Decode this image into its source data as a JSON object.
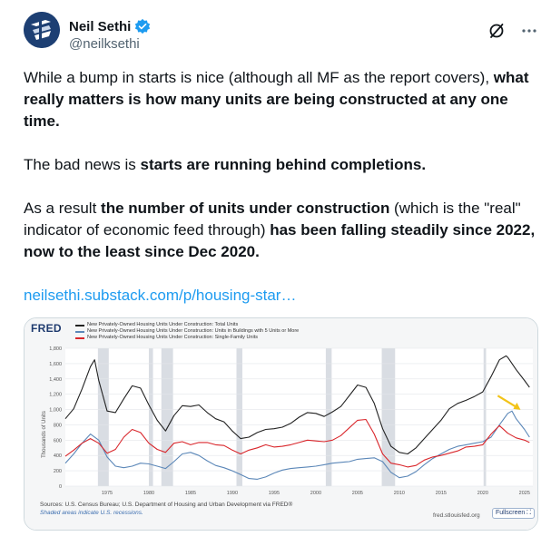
{
  "author": {
    "name": "Neil Sethi",
    "handle": "@neilksethi"
  },
  "tweet": {
    "p1_a": "While a bump in starts is nice (although all MF as the report covers), ",
    "p1_b": "what really matters is how many units are being constructed at any one time.",
    "p2_a": "The bad news is ",
    "p2_b": "starts are running behind completions.",
    "p3_a": "As a result ",
    "p3_b": "the number of units under construction",
    "p3_c": " (which is the \"real\" indicator of economic feed through) ",
    "p3_d": "has been falling steadily since 2022, now to the least since Dec 2020.",
    "link": "neilsethi.substack.com/p/housing-star…"
  },
  "icons": {
    "grok": "grok-icon",
    "more": "more-icon",
    "verified": "verified-badge-icon",
    "arrow": "arrow-icon"
  },
  "colors": {
    "accent": "#1d9bf0",
    "total": "#222222",
    "five_plus": "#5b87b8",
    "single_family": "#d9262b",
    "recession": "#d9dde3"
  },
  "chart_data": {
    "type": "line",
    "brand": "FRED",
    "ylabel": "Thousands of Units",
    "ylim": [
      0,
      1800
    ],
    "yticks": [
      "0",
      "200",
      "400",
      "600",
      "800",
      "1,000",
      "1,200",
      "1,400",
      "1,600",
      "1,800"
    ],
    "xlim": [
      1970,
      2026
    ],
    "xticks": [
      "1975",
      "1980",
      "1985",
      "1990",
      "1995",
      "2000",
      "2005",
      "2010",
      "2015",
      "2020",
      "2025"
    ],
    "recessions": [
      [
        1973.9,
        1975.2
      ],
      [
        1980.0,
        1980.5
      ],
      [
        1981.5,
        1982.9
      ],
      [
        1990.5,
        1991.2
      ],
      [
        2001.2,
        2001.9
      ],
      [
        2007.9,
        2009.5
      ],
      [
        2020.1,
        2020.4
      ]
    ],
    "series": [
      {
        "name": "New Privately-Owned Housing Units Under Construction: Total Units",
        "x": [
          1970,
          1971,
          1972,
          1973,
          1973.5,
          1974,
          1975,
          1976,
          1977,
          1978,
          1979,
          1980,
          1981,
          1982,
          1983,
          1984,
          1985,
          1986,
          1987,
          1988,
          1989,
          1990,
          1991,
          1992,
          1993,
          1994,
          1995,
          1996,
          1997,
          1998,
          1999,
          2000,
          2001,
          2002,
          2003,
          2004,
          2005,
          2006,
          2007,
          2008,
          2009,
          2010,
          2011,
          2012,
          2013,
          2014,
          2015,
          2016,
          2017,
          2018,
          2019,
          2020,
          2021,
          2022,
          2022.8,
          2023,
          2024,
          2025,
          2025.6
        ],
        "values": [
          880,
          1010,
          1270,
          1560,
          1650,
          1380,
          980,
          960,
          1140,
          1310,
          1280,
          1060,
          860,
          720,
          920,
          1050,
          1040,
          1060,
          960,
          880,
          840,
          720,
          620,
          640,
          700,
          740,
          750,
          770,
          820,
          900,
          960,
          950,
          910,
          970,
          1040,
          1180,
          1320,
          1290,
          1080,
          750,
          520,
          440,
          420,
          500,
          620,
          740,
          860,
          1010,
          1080,
          1120,
          1170,
          1230,
          1430,
          1650,
          1700,
          1680,
          1520,
          1380,
          1290
        ]
      },
      {
        "name": "New Privately-Owned Housing Units Under Construction: Units in Buildings with 5 Units or More",
        "x": [
          1970,
          1971,
          1972,
          1973,
          1974,
          1975,
          1976,
          1977,
          1978,
          1979,
          1980,
          1981,
          1982,
          1983,
          1984,
          1985,
          1986,
          1987,
          1988,
          1989,
          1990,
          1991,
          1992,
          1993,
          1994,
          1995,
          1996,
          1997,
          1998,
          1999,
          2000,
          2001,
          2002,
          2003,
          2004,
          2005,
          2006,
          2007,
          2008,
          2009,
          2010,
          2011,
          2012,
          2013,
          2014,
          2015,
          2016,
          2017,
          2018,
          2019,
          2020,
          2021,
          2022,
          2023,
          2023.5,
          2024,
          2025,
          2025.6
        ],
        "values": [
          300,
          420,
          560,
          680,
          600,
          380,
          260,
          240,
          260,
          300,
          290,
          260,
          230,
          320,
          420,
          440,
          400,
          330,
          270,
          240,
          200,
          150,
          100,
          90,
          120,
          170,
          210,
          230,
          240,
          250,
          260,
          280,
          300,
          310,
          320,
          350,
          360,
          370,
          320,
          180,
          110,
          130,
          190,
          280,
          360,
          420,
          480,
          520,
          540,
          560,
          580,
          640,
          800,
          950,
          980,
          880,
          740,
          640
        ]
      },
      {
        "name": "New Privately-Owned Housing Units Under Construction: Single-Family Units",
        "x": [
          1970,
          1971,
          1972,
          1973,
          1974,
          1975,
          1976,
          1977,
          1978,
          1979,
          1980,
          1981,
          1982,
          1983,
          1984,
          1985,
          1986,
          1987,
          1988,
          1989,
          1990,
          1991,
          1992,
          1993,
          1994,
          1995,
          1996,
          1997,
          1998,
          1999,
          2000,
          2001,
          2002,
          2003,
          2004,
          2005,
          2006,
          2007,
          2008,
          2009,
          2010,
          2011,
          2012,
          2013,
          2014,
          2015,
          2016,
          2017,
          2018,
          2019,
          2020,
          2021,
          2022,
          2023,
          2024,
          2025,
          2025.6
        ],
        "values": [
          390,
          470,
          560,
          620,
          560,
          430,
          480,
          640,
          740,
          700,
          560,
          480,
          440,
          560,
          580,
          540,
          570,
          570,
          540,
          530,
          470,
          420,
          470,
          500,
          540,
          510,
          520,
          540,
          570,
          600,
          590,
          580,
          600,
          660,
          760,
          860,
          870,
          680,
          420,
          300,
          280,
          250,
          270,
          340,
          380,
          400,
          430,
          460,
          510,
          520,
          540,
          680,
          790,
          690,
          630,
          600,
          570
        ]
      }
    ]
  },
  "chart_footer": {
    "sources": "Sources: U.S. Census Bureau; U.S. Department of Housing and Urban Development via FRED®",
    "shaded": "Shaded areas indicate U.S. recessions.",
    "url": "fred.stlouisfed.org",
    "fullscreen": "Fullscreen"
  }
}
